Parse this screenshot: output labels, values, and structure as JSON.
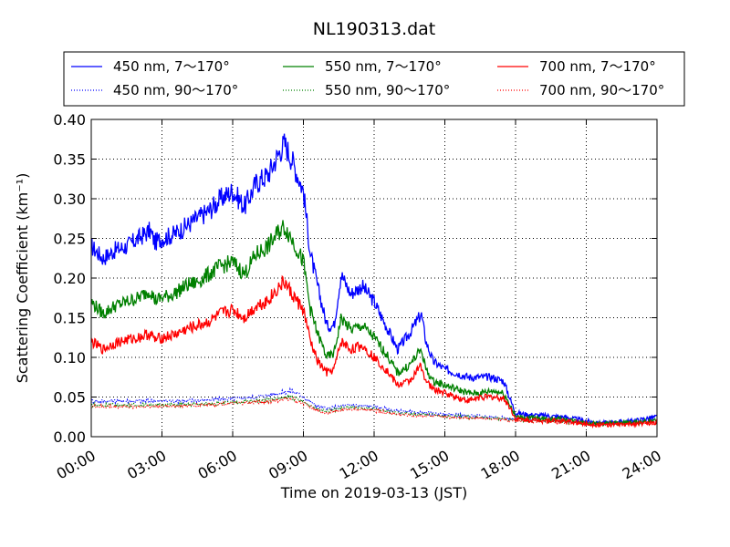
{
  "chart_data": {
    "type": "line",
    "title": "NL190313.dat",
    "xlabel": "Time on 2019-03-13 (JST)",
    "ylabel": "Scattering Coefficient (km⁻¹)",
    "xlim": [
      0,
      24
    ],
    "ylim": [
      0,
      0.4
    ],
    "x_ticks": [
      "00:00",
      "03:00",
      "06:00",
      "09:00",
      "12:00",
      "15:00",
      "18:00",
      "21:00",
      "24:00"
    ],
    "y_ticks": [
      "0.00",
      "0.05",
      "0.10",
      "0.15",
      "0.20",
      "0.25",
      "0.30",
      "0.35",
      "0.40"
    ],
    "grid": true,
    "legend_position": "top",
    "series": [
      {
        "name": "450 nm, 7～170°",
        "color": "#0000ff",
        "style": "solid",
        "x": [
          0,
          0.5,
          1,
          1.5,
          2,
          2.5,
          2.7,
          3,
          3.5,
          4,
          4.5,
          5,
          5.5,
          6,
          6.5,
          7,
          7.5,
          8,
          8.2,
          8.5,
          9,
          9.3,
          9.6,
          10,
          10.3,
          10.6,
          11,
          11.5,
          12,
          12.5,
          13,
          13.5,
          14,
          14.2,
          14.5,
          15,
          15.5,
          16,
          16.5,
          17,
          17.5,
          17.8,
          18,
          18.5,
          19,
          20,
          21,
          21.5,
          22,
          22.5,
          23,
          24
        ],
        "y": [
          0.24,
          0.225,
          0.235,
          0.24,
          0.25,
          0.26,
          0.245,
          0.25,
          0.255,
          0.265,
          0.275,
          0.285,
          0.3,
          0.31,
          0.29,
          0.32,
          0.33,
          0.36,
          0.37,
          0.35,
          0.31,
          0.23,
          0.19,
          0.14,
          0.14,
          0.205,
          0.18,
          0.19,
          0.17,
          0.14,
          0.11,
          0.13,
          0.155,
          0.12,
          0.095,
          0.085,
          0.08,
          0.075,
          0.075,
          0.075,
          0.07,
          0.045,
          0.03,
          0.028,
          0.027,
          0.025,
          0.02,
          0.017,
          0.018,
          0.019,
          0.02,
          0.025
        ]
      },
      {
        "name": "450 nm, 90～170°",
        "color": "#0000ff",
        "style": "dotted",
        "x": [
          0,
          2,
          4,
          6,
          7,
          8,
          8.5,
          9,
          9.5,
          10,
          10.5,
          11,
          12,
          13,
          15,
          17,
          18,
          20,
          21,
          22,
          24
        ],
        "y": [
          0.045,
          0.045,
          0.045,
          0.048,
          0.05,
          0.055,
          0.058,
          0.05,
          0.04,
          0.035,
          0.038,
          0.04,
          0.038,
          0.032,
          0.028,
          0.025,
          0.022,
          0.02,
          0.018,
          0.018,
          0.02
        ]
      },
      {
        "name": "550 nm, 7～170°",
        "color": "#008000",
        "style": "solid",
        "x": [
          0,
          0.5,
          1,
          1.5,
          2,
          2.5,
          2.7,
          3,
          3.5,
          4,
          4.5,
          5,
          5.5,
          6,
          6.5,
          7,
          7.5,
          8,
          8.2,
          8.5,
          9,
          9.3,
          9.6,
          10,
          10.3,
          10.6,
          11,
          11.5,
          12,
          12.5,
          13,
          13.5,
          14,
          14.2,
          14.5,
          15,
          15.5,
          16,
          16.5,
          17,
          17.5,
          17.8,
          18,
          18.5,
          19,
          20,
          21,
          21.5,
          22,
          22.5,
          23,
          24
        ],
        "y": [
          0.17,
          0.155,
          0.165,
          0.17,
          0.175,
          0.185,
          0.172,
          0.175,
          0.18,
          0.19,
          0.195,
          0.205,
          0.215,
          0.22,
          0.205,
          0.23,
          0.24,
          0.26,
          0.265,
          0.25,
          0.22,
          0.16,
          0.13,
          0.1,
          0.105,
          0.15,
          0.135,
          0.14,
          0.125,
          0.105,
          0.08,
          0.09,
          0.11,
          0.085,
          0.07,
          0.065,
          0.06,
          0.055,
          0.055,
          0.058,
          0.055,
          0.038,
          0.025,
          0.024,
          0.023,
          0.022,
          0.018,
          0.016,
          0.017,
          0.017,
          0.018,
          0.02
        ]
      },
      {
        "name": "550 nm, 90～170°",
        "color": "#008000",
        "style": "dotted",
        "x": [
          0,
          2,
          4,
          6,
          7,
          8,
          8.5,
          9,
          9.5,
          10,
          10.5,
          11,
          12,
          13,
          15,
          17,
          18,
          20,
          21,
          22,
          24
        ],
        "y": [
          0.04,
          0.04,
          0.04,
          0.043,
          0.045,
          0.048,
          0.05,
          0.044,
          0.036,
          0.032,
          0.035,
          0.037,
          0.035,
          0.03,
          0.026,
          0.024,
          0.021,
          0.019,
          0.017,
          0.017,
          0.018
        ]
      },
      {
        "name": "700 nm, 7～170°",
        "color": "#ff0000",
        "style": "solid",
        "x": [
          0,
          0.5,
          1,
          1.5,
          2,
          2.5,
          2.7,
          3,
          3.5,
          4,
          4.5,
          5,
          5.5,
          6,
          6.5,
          7,
          7.5,
          8,
          8.2,
          8.5,
          9,
          9.3,
          9.6,
          10,
          10.3,
          10.6,
          11,
          11.5,
          12,
          12.5,
          13,
          13.5,
          14,
          14.2,
          14.5,
          15,
          15.5,
          16,
          16.5,
          17,
          17.5,
          17.8,
          18,
          18.5,
          19,
          20,
          21,
          21.5,
          22,
          22.5,
          23,
          24
        ],
        "y": [
          0.12,
          0.11,
          0.118,
          0.122,
          0.125,
          0.13,
          0.122,
          0.125,
          0.128,
          0.135,
          0.14,
          0.145,
          0.155,
          0.16,
          0.15,
          0.165,
          0.172,
          0.19,
          0.195,
          0.18,
          0.16,
          0.12,
          0.095,
          0.08,
          0.085,
          0.12,
          0.11,
          0.115,
          0.1,
          0.085,
          0.065,
          0.07,
          0.09,
          0.07,
          0.06,
          0.055,
          0.05,
          0.045,
          0.05,
          0.05,
          0.048,
          0.035,
          0.022,
          0.021,
          0.021,
          0.02,
          0.016,
          0.015,
          0.015,
          0.015,
          0.016,
          0.018
        ]
      },
      {
        "name": "700 nm, 90～170°",
        "color": "#ff0000",
        "style": "dotted",
        "x": [
          0,
          2,
          4,
          6,
          7,
          8,
          8.5,
          9,
          9.5,
          10,
          10.5,
          11,
          12,
          13,
          15,
          17,
          18,
          20,
          21,
          22,
          24
        ],
        "y": [
          0.038,
          0.038,
          0.039,
          0.042,
          0.043,
          0.046,
          0.048,
          0.042,
          0.034,
          0.03,
          0.033,
          0.035,
          0.033,
          0.028,
          0.025,
          0.023,
          0.02,
          0.018,
          0.016,
          0.016,
          0.017
        ]
      }
    ]
  }
}
